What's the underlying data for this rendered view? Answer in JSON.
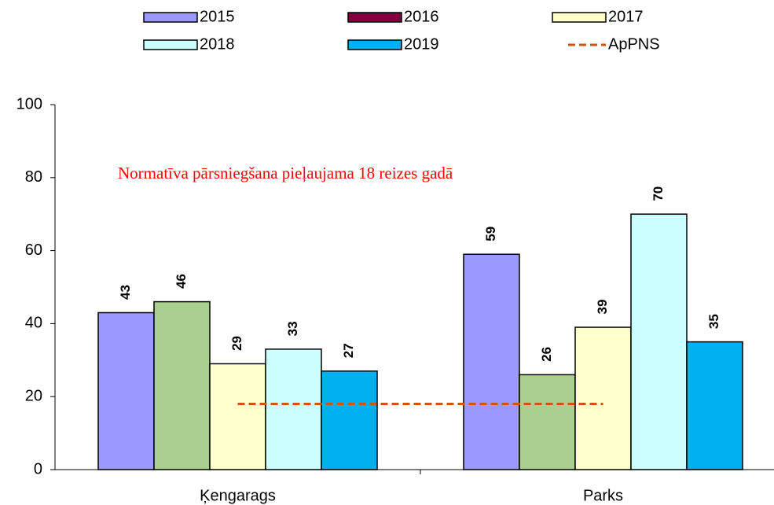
{
  "chart_data": {
    "type": "bar",
    "categories": [
      "Ķengarags",
      "Parks"
    ],
    "series": [
      {
        "name": "2015",
        "color": "#9999ff",
        "values": [
          43,
          59
        ]
      },
      {
        "name": "2016",
        "color": "#a9d08e",
        "legend_color": "#800040",
        "values": [
          46,
          26
        ]
      },
      {
        "name": "2017",
        "color": "#ffffcc",
        "values": [
          29,
          39
        ]
      },
      {
        "name": "2018",
        "color": "#ccffff",
        "values": [
          33,
          70
        ]
      },
      {
        "name": "2019",
        "color": "#00b0f0",
        "values": [
          27,
          35
        ]
      }
    ],
    "reference_line": {
      "name": "ApPNS",
      "color": "#cc5511",
      "value": 18,
      "dashed": true
    },
    "annotation": "Normatīva pārsniegšana pieļaujama 18 reizes gadā",
    "ylim": [
      0,
      100
    ],
    "yticks": [
      0,
      20,
      40,
      60,
      80,
      100
    ],
    "grid": false
  }
}
